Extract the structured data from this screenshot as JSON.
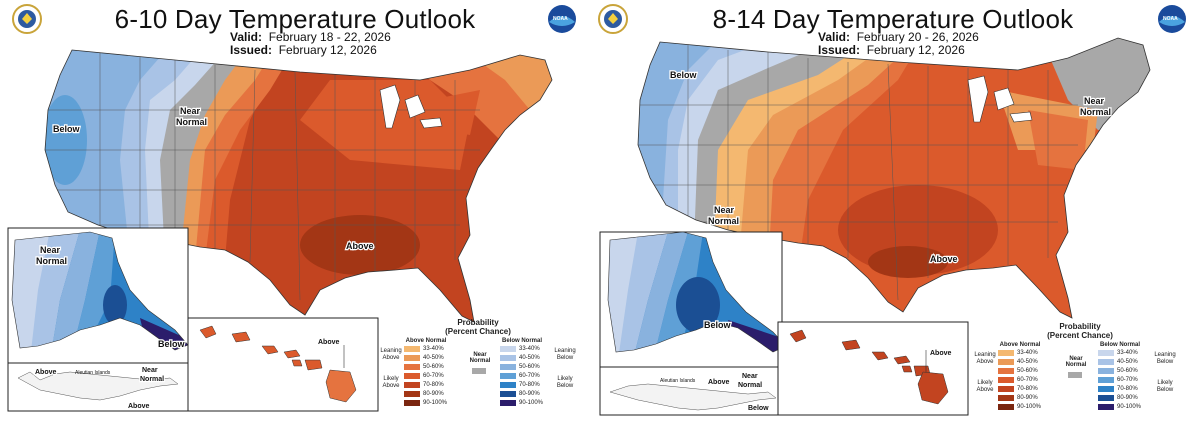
{
  "panels": [
    {
      "title": "6-10 Day Temperature Outlook",
      "valid_label": "Valid:",
      "valid_value": "February 18 - 22, 2026",
      "issued_label": "Issued:",
      "issued_value": "February 12, 2026",
      "labels": {
        "below": "Below",
        "near_line1": "Near",
        "near_line2": "Normal",
        "above": "Above",
        "ak_near_line1": "Near",
        "ak_near_line2": "Normal",
        "ak_below": "Below",
        "hi_above": "Above",
        "aleut_title": "Aleutian Islands",
        "aleut_above": "Above",
        "aleut_near_line1": "Near",
        "aleut_near_line2": "Normal",
        "aleut_above2": "Above"
      }
    },
    {
      "title": "8-14 Day Temperature Outlook",
      "valid_label": "Valid:",
      "valid_value": "February 20 - 26, 2026",
      "issued_label": "Issued:",
      "issued_value": "February 12, 2026",
      "labels": {
        "below": "Below",
        "near_line1": "Near",
        "near_line2": "Normal",
        "near2_line1": "Near",
        "near2_line2": "Normal",
        "above": "Above",
        "ak_below": "Below",
        "hi_above": "Above",
        "aleut_title": "Aleutian Islands",
        "aleut_above": "Above",
        "aleut_near_line1": "Near",
        "aleut_near_line2": "Normal",
        "aleut_below": "Below"
      }
    }
  ],
  "legend": {
    "title_line1": "Probability",
    "title_line2": "(Percent Chance)",
    "above_header": "Above Normal",
    "below_header": "Below Normal",
    "near_line1": "Near",
    "near_line2": "Normal",
    "leaning_above_l1": "Leaning",
    "leaning_above_l2": "Above",
    "likely_above_l1": "Likely",
    "likely_above_l2": "Above",
    "leaning_below_l1": "Leaning",
    "leaning_below_l2": "Below",
    "likely_below_l1": "Likely",
    "likely_below_l2": "Below",
    "ranges": [
      "33-40%",
      "40-50%",
      "50-60%",
      "60-70%",
      "70-80%",
      "80-90%",
      "90-100%"
    ],
    "above_colors": [
      "#f4b870",
      "#eb9a57",
      "#e5733f",
      "#db5a2c",
      "#c24420",
      "#a33615",
      "#7a2610"
    ],
    "below_colors": [
      "#c8d6ec",
      "#a9c3e6",
      "#89b2de",
      "#5fa0d6",
      "#2e82c7",
      "#1b4f94",
      "#2b1d6b"
    ],
    "near_color": "#a8a8a8"
  }
}
